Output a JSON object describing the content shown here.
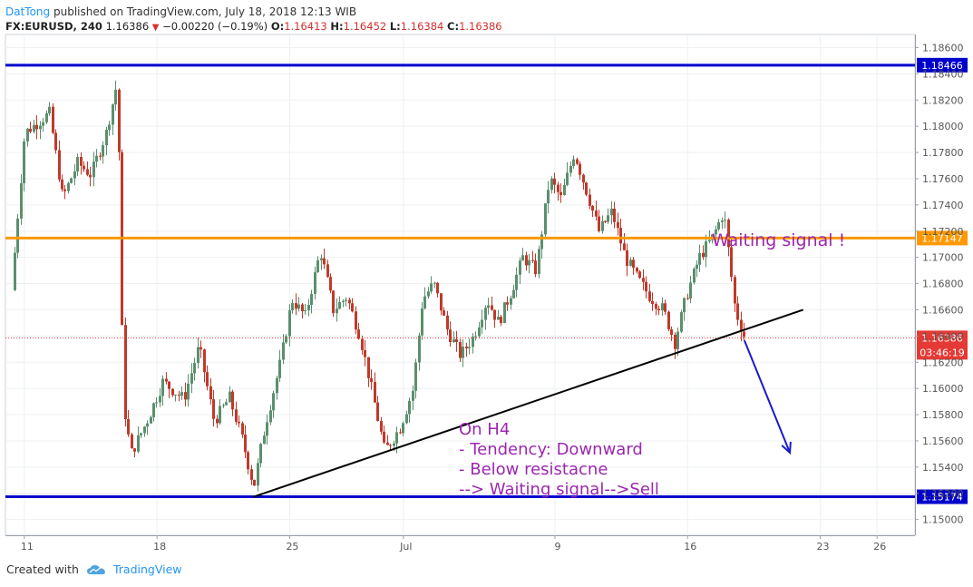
{
  "header": {
    "author": "DatTong",
    "published_text": "published on TradingView.com, July 18, 2018 12:13 WIB"
  },
  "symbol_line": {
    "symbol": "FX:EURUSD, 240",
    "last": "1.16386",
    "change": "−0.00220 (−0.19%)",
    "open_label": "O:",
    "open": "1.16413",
    "high_label": "H:",
    "high": "1.16452",
    "low_label": "L:",
    "low": "1.16384",
    "close_label": "C:",
    "close": "1.16386"
  },
  "footer": {
    "created_with": "Created with",
    "brand": "TradingView"
  },
  "colors": {
    "up": "#5b8f6e",
    "down": "#c0392b",
    "support_line": "#0000cc",
    "resistance_line": "#ff9800",
    "trendline": "#000000",
    "annotation": "#9c27b0",
    "arrow": "#1a1acc",
    "price_tag": "#e53935"
  },
  "chart_data": {
    "type": "candlestick",
    "ylim": [
      1.1488,
      1.187
    ],
    "y_ticks": [
      "1.15000",
      "1.15200",
      "1.15400",
      "1.15600",
      "1.15800",
      "1.16000",
      "1.16200",
      "1.16400",
      "1.16600",
      "1.16800",
      "1.17000",
      "1.17200",
      "1.17400",
      "1.17600",
      "1.17800",
      "1.18000",
      "1.18200",
      "1.18400",
      "1.18600"
    ],
    "x_ticks": [
      {
        "label": "11",
        "day": 11
      },
      {
        "label": "18",
        "day": 18
      },
      {
        "label": "25",
        "day": 25
      },
      {
        "label": "Jul",
        "day": 31
      },
      {
        "label": "9",
        "day": 39
      },
      {
        "label": "16",
        "day": 46
      },
      {
        "label": "23",
        "day": 53
      },
      {
        "label": "26",
        "day": 56
      }
    ],
    "x_note": "day index counts calendar days from June 1, 2018 (Jul 1 = 31)",
    "horizontal_levels": [
      {
        "value": 1.18466,
        "label": "1.18466",
        "role": "resistance_top"
      },
      {
        "value": 1.17147,
        "label": "1.17147",
        "role": "resistance"
      },
      {
        "value": 1.15174,
        "label": "1.15174",
        "role": "support"
      }
    ],
    "last_price": {
      "value": 1.16386,
      "label": "1.16386",
      "countdown": "03:46:19"
    },
    "trendline": {
      "from": {
        "day": 23.1,
        "value": 1.15174
      },
      "to": {
        "day": 52.1,
        "value": 1.166
      }
    },
    "arrow": {
      "from": {
        "day": 49.0,
        "value": 1.16366
      },
      "to": {
        "day": 51.4,
        "value": 1.1551
      }
    },
    "annotations": {
      "waiting_signal": "Waiting signal !",
      "analysis_lines": [
        "On H4",
        "- Tendency: Downward",
        "- Below resistacne",
        "--> Waiting signal-->Sell"
      ]
    },
    "key_points": [
      {
        "day": 10.3,
        "value": 1.1675
      },
      {
        "day": 11.0,
        "value": 1.1795
      },
      {
        "day": 12.3,
        "value": 1.181
      },
      {
        "day": 13.0,
        "value": 1.1745
      },
      {
        "day": 13.8,
        "value": 1.1772
      },
      {
        "day": 14.5,
        "value": 1.1763
      },
      {
        "day": 15.3,
        "value": 1.1795
      },
      {
        "day": 15.9,
        "value": 1.1835
      },
      {
        "day": 16.2,
        "value": 1.159
      },
      {
        "day": 16.6,
        "value": 1.155
      },
      {
        "day": 17.5,
        "value": 1.1577
      },
      {
        "day": 18.3,
        "value": 1.1605
      },
      {
        "day": 19.4,
        "value": 1.1592
      },
      {
        "day": 20.2,
        "value": 1.1632
      },
      {
        "day": 21.0,
        "value": 1.1575
      },
      {
        "day": 21.8,
        "value": 1.1593
      },
      {
        "day": 22.5,
        "value": 1.156
      },
      {
        "day": 23.1,
        "value": 1.1525
      },
      {
        "day": 23.7,
        "value": 1.1572
      },
      {
        "day": 24.5,
        "value": 1.162
      },
      {
        "day": 25.1,
        "value": 1.1668
      },
      {
        "day": 25.8,
        "value": 1.1655
      },
      {
        "day": 26.6,
        "value": 1.1705
      },
      {
        "day": 27.3,
        "value": 1.166
      },
      {
        "day": 28.0,
        "value": 1.167
      },
      {
        "day": 28.7,
        "value": 1.164
      },
      {
        "day": 29.3,
        "value": 1.16
      },
      {
        "day": 30.0,
        "value": 1.1552
      },
      {
        "day": 30.8,
        "value": 1.157
      },
      {
        "day": 31.5,
        "value": 1.16
      },
      {
        "day": 32.0,
        "value": 1.1668
      },
      {
        "day": 32.6,
        "value": 1.168
      },
      {
        "day": 33.3,
        "value": 1.1645
      },
      {
        "day": 34.0,
        "value": 1.1625
      },
      {
        "day": 34.7,
        "value": 1.164
      },
      {
        "day": 35.4,
        "value": 1.1668
      },
      {
        "day": 36.0,
        "value": 1.165
      },
      {
        "day": 36.7,
        "value": 1.1675
      },
      {
        "day": 37.3,
        "value": 1.17
      },
      {
        "day": 38.0,
        "value": 1.169
      },
      {
        "day": 38.7,
        "value": 1.176
      },
      {
        "day": 39.3,
        "value": 1.1745
      },
      {
        "day": 40.0,
        "value": 1.178
      },
      {
        "day": 40.7,
        "value": 1.1748
      },
      {
        "day": 41.3,
        "value": 1.172
      },
      {
        "day": 42.0,
        "value": 1.1735
      },
      {
        "day": 42.7,
        "value": 1.17
      },
      {
        "day": 43.3,
        "value": 1.1685
      },
      {
        "day": 44.0,
        "value": 1.167
      },
      {
        "day": 44.7,
        "value": 1.166
      },
      {
        "day": 45.3,
        "value": 1.1635
      },
      {
        "day": 45.9,
        "value": 1.167
      },
      {
        "day": 46.6,
        "value": 1.17
      },
      {
        "day": 47.3,
        "value": 1.1715
      },
      {
        "day": 47.9,
        "value": 1.1735
      },
      {
        "day": 48.5,
        "value": 1.166
      },
      {
        "day": 49.0,
        "value": 1.1639
      }
    ]
  }
}
